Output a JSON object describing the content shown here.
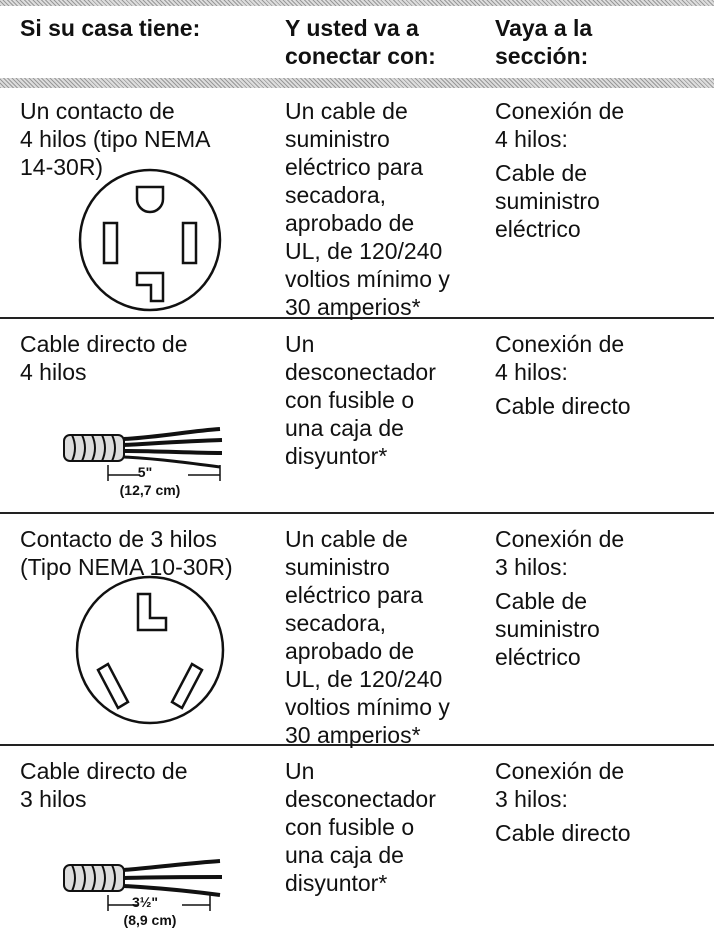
{
  "header": {
    "columns": [
      [
        "Si su casa tiene:"
      ],
      [
        "Y usted va a",
        "conectar con:"
      ],
      [
        "Vaya a la",
        "sección:"
      ]
    ]
  },
  "rows": [
    {
      "col1": [
        "Un contacto de",
        "4 hilos (tipo NEMA",
        "14-30R)"
      ],
      "col2": [
        "Un cable de",
        "suministro",
        "eléctrico para",
        "secadora,",
        "aprobado de",
        "UL, de 120/240",
        "voltios mínimo y",
        "30 amperios*"
      ],
      "col3": [
        [
          "Conexión de",
          "4 hilos:"
        ],
        [
          "Cable de",
          "suministro",
          "eléctrico"
        ]
      ]
    },
    {
      "col1": [
        "Cable directo de",
        "4 hilos"
      ],
      "dimension": [
        "5\"",
        "(12,7 cm)"
      ],
      "col2": [
        "Un",
        "desconectador",
        "con fusible o",
        "una caja de",
        "disyuntor*"
      ],
      "col3": [
        [
          "Conexión de",
          "4 hilos:"
        ],
        [
          "Cable directo"
        ]
      ]
    },
    {
      "col1": [
        "Contacto de 3 hilos",
        "(Tipo NEMA 10-30R)"
      ],
      "col2": [
        "Un cable de",
        "suministro",
        "eléctrico para",
        "secadora,",
        "aprobado de",
        "UL, de 120/240",
        "voltios mínimo y",
        "30 amperios*"
      ],
      "col3": [
        [
          "Conexión de",
          "3 hilos:"
        ],
        [
          "Cable de",
          "suministro",
          "eléctrico"
        ]
      ]
    },
    {
      "col1": [
        "Cable directo de",
        "3 hilos"
      ],
      "dimension": [
        "3½\"",
        "(8,9 cm)"
      ],
      "col2": [
        "Un",
        "desconectador",
        "con fusible o",
        "una caja de",
        "disyuntor*"
      ],
      "col3": [
        [
          "Conexión de",
          "3 hilos:"
        ],
        [
          "Cable directo"
        ]
      ]
    }
  ]
}
